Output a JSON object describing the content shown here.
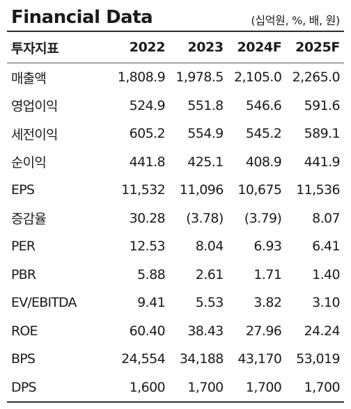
{
  "header": {
    "title": "Financial Data",
    "unit": "(십억원, %, 배, 원)"
  },
  "table": {
    "columns": [
      "투자지표",
      "2022",
      "2023",
      "2024F",
      "2025F"
    ],
    "rows": [
      {
        "label": "매출액",
        "values": [
          "1,808.9",
          "1,978.5",
          "2,105.0",
          "2,265.0"
        ]
      },
      {
        "label": "영업이익",
        "values": [
          "524.9",
          "551.8",
          "546.6",
          "591.6"
        ]
      },
      {
        "label": "세전이익",
        "values": [
          "605.2",
          "554.9",
          "545.2",
          "589.1"
        ]
      },
      {
        "label": "순이익",
        "values": [
          "441.8",
          "425.1",
          "408.9",
          "441.9"
        ]
      },
      {
        "label": "EPS",
        "values": [
          "11,532",
          "11,096",
          "10,675",
          "11,536"
        ]
      },
      {
        "label": "증감율",
        "values": [
          "30.28",
          "(3.78)",
          "(3.79)",
          "8.07"
        ]
      },
      {
        "label": "PER",
        "values": [
          "12.53",
          "8.04",
          "6.93",
          "6.41"
        ]
      },
      {
        "label": "PBR",
        "values": [
          "5.88",
          "2.61",
          "1.71",
          "1.40"
        ]
      },
      {
        "label": "EV/EBITDA",
        "values": [
          "9.41",
          "5.53",
          "3.82",
          "3.10"
        ]
      },
      {
        "label": "ROE",
        "values": [
          "60.40",
          "38.43",
          "27.96",
          "24.24"
        ]
      },
      {
        "label": "BPS",
        "values": [
          "24,554",
          "34,188",
          "43,170",
          "53,019"
        ]
      },
      {
        "label": "DPS",
        "values": [
          "1,600",
          "1,700",
          "1,700",
          "1,700"
        ]
      }
    ]
  }
}
